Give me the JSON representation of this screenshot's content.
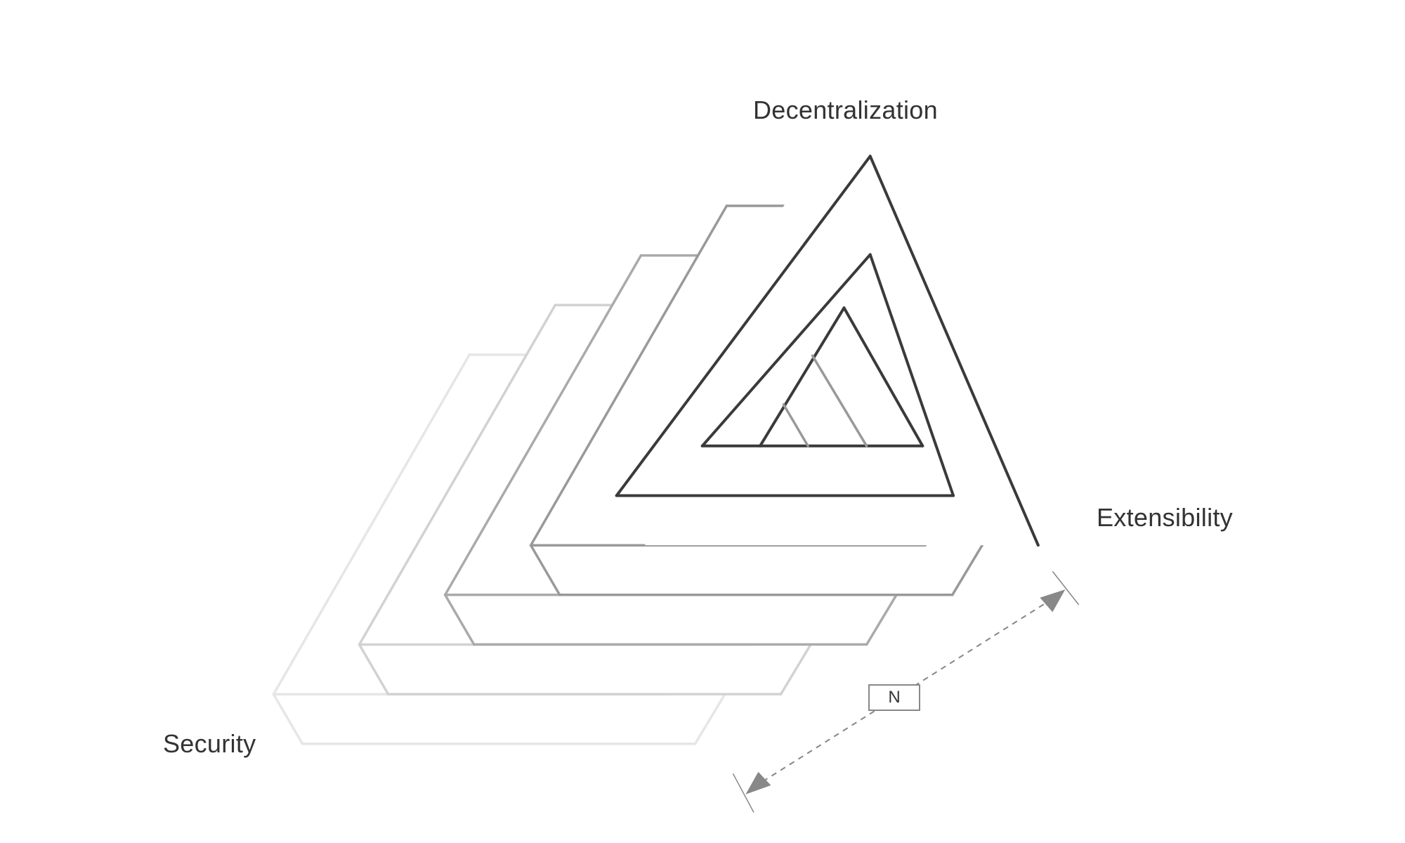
{
  "labels": {
    "top": "Decentralization",
    "right": "Extensibility",
    "left": "Security",
    "count": "N"
  },
  "colors": {
    "layers": [
      "#e6e6e6",
      "#d2d2d2",
      "#aaaaaa",
      "#999999",
      "#3a3a3a"
    ],
    "text": "#333333",
    "arrow": "#888888"
  },
  "layer_count": 5
}
